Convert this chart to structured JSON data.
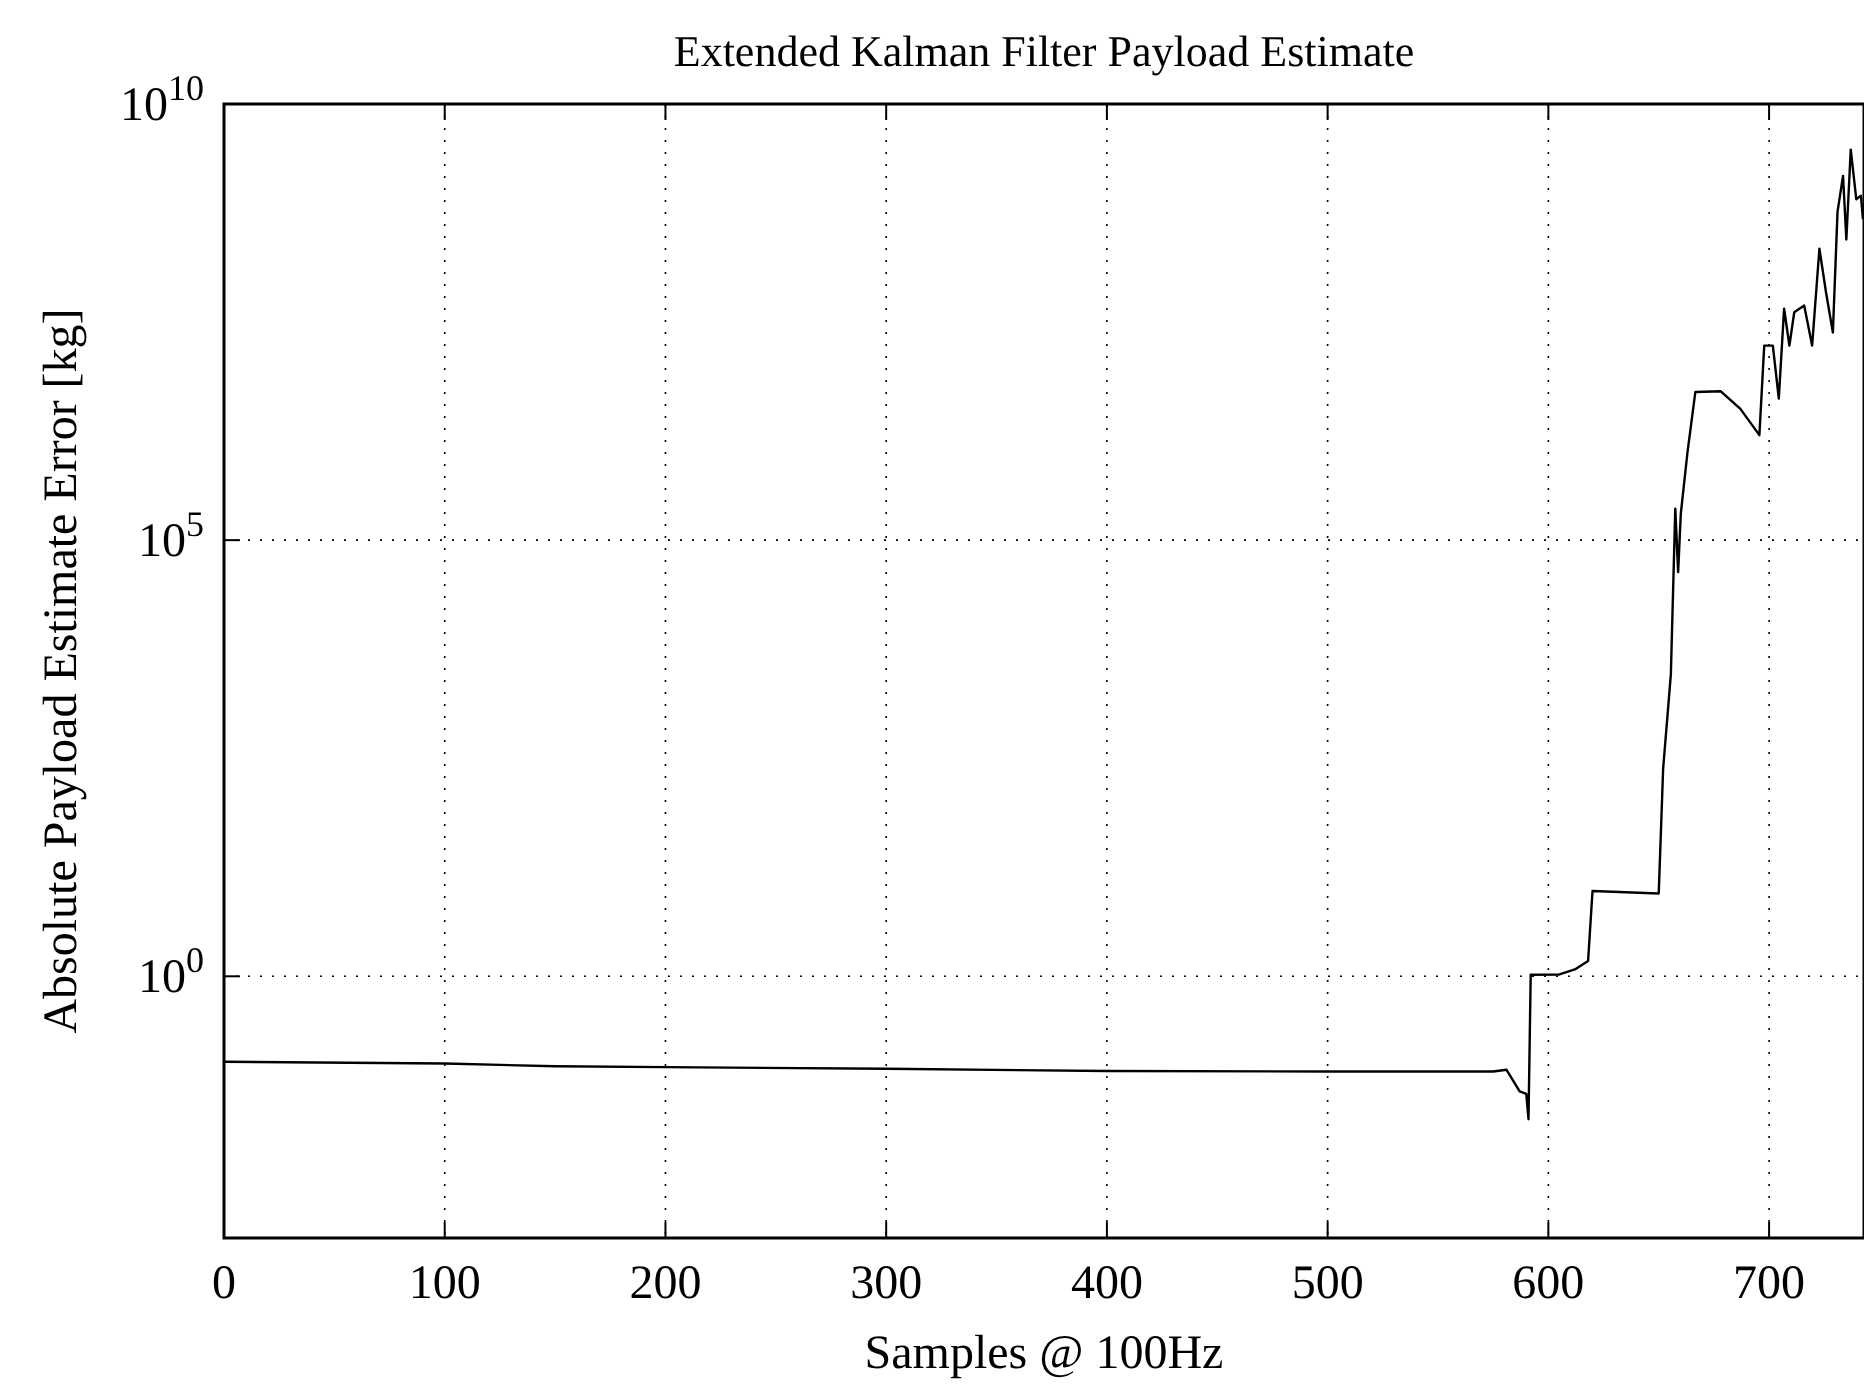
{
  "chart_data": {
    "type": "line",
    "title": "Extended Kalman Filter Payload Estimate",
    "xlabel": "Samples @ 100Hz",
    "ylabel": "Absolute Payload Estimate Error [kg]",
    "log": "y",
    "grid": true,
    "line_style": "solid",
    "marker": "none",
    "xlim": [
      0,
      743
    ],
    "xticks": [
      0,
      100,
      200,
      300,
      400,
      500,
      600,
      700
    ],
    "ylim": [
      0.001,
      10000000000
    ],
    "yticks": [
      {
        "value": 1,
        "label": "10$^{0}$"
      },
      {
        "value": 100000,
        "label": "10$^{5}$"
      },
      {
        "value": 10000000000,
        "label": "10$^{10}$"
      }
    ],
    "series": [
      {
        "color": "#000000",
        "x": [
          0,
          100,
          150,
          200,
          300,
          400,
          500,
          575,
          581,
          587,
          590,
          591,
          592,
          605,
          612,
          618,
          620,
          650,
          652,
          655.5,
          657.5,
          658.8,
          660,
          663,
          666.6,
          678,
          687,
          695.6,
          697.8,
          701.7,
          704.4,
          706.8,
          709.2,
          711.4,
          715.9,
          719.5,
          722.8,
          725.8,
          728.9,
          731,
          733.5,
          735,
          737,
          739.5,
          741.6,
          742.5
        ],
        "values": [
          0.105,
          0.1,
          0.093,
          0.091,
          0.087,
          0.082,
          0.081,
          0.081,
          0.085,
          0.048,
          0.045,
          0.023,
          1.04,
          1.05,
          1.2,
          1.5,
          9.5,
          8.9,
          240,
          2900,
          230000,
          43000,
          200000,
          1000000,
          5000000,
          5100000,
          3200000,
          1600000,
          17000000,
          17000000,
          4200000,
          45000000,
          17000000,
          41000000,
          49000000,
          17000000,
          220000000,
          69000000,
          24000000,
          580000000,
          1500000000,
          280000000,
          3000000000,
          810000000,
          890000000,
          480000000
        ]
      }
    ]
  }
}
